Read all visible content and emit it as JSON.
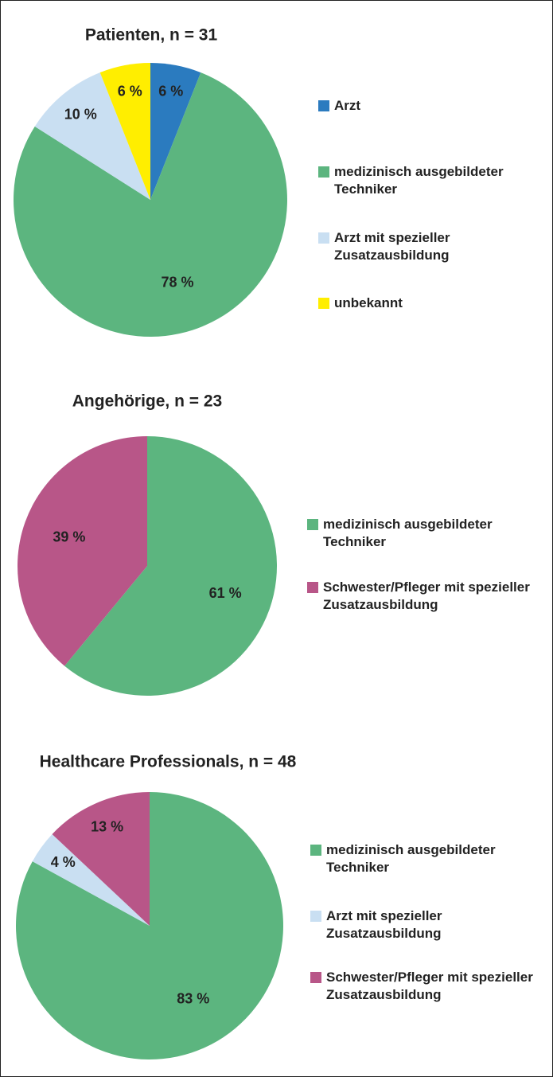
{
  "chart_data": [
    {
      "type": "pie",
      "title": "Patienten, n = 31",
      "categories": [
        "Arzt",
        "medizinisch ausgebildeter Techniker",
        "Arzt mit spezieller Zusatzausbildung",
        "unbekannt"
      ],
      "values": [
        6,
        78,
        10,
        6
      ],
      "value_labels": [
        "6 %",
        "78 %",
        "10 %",
        "6 %"
      ],
      "colors": [
        "#2b7bbf",
        "#5cb57f",
        "#c9dff2",
        "#ffee00"
      ]
    },
    {
      "type": "pie",
      "title": "Angehörige, n = 23",
      "categories": [
        "medizinisch ausgebildeter Techniker",
        "Schwester/Pfleger mit spezieller Zusatzausbildung"
      ],
      "values": [
        61,
        39
      ],
      "value_labels": [
        "61 %",
        "39 %"
      ],
      "colors": [
        "#5cb57f",
        "#b85688"
      ]
    },
    {
      "type": "pie",
      "title": "Healthcare Professionals, n = 48",
      "categories": [
        "medizinisch ausgebildeter Techniker",
        "Arzt mit spezieller Zusatzausbildung",
        "Schwester/Pfleger mit spezieller Zusatzausbildung"
      ],
      "values": [
        83,
        4,
        13
      ],
      "value_labels": [
        "83 %",
        "4 %",
        "13 %"
      ],
      "colors": [
        "#5cb57f",
        "#c9dff2",
        "#b85688"
      ]
    }
  ]
}
